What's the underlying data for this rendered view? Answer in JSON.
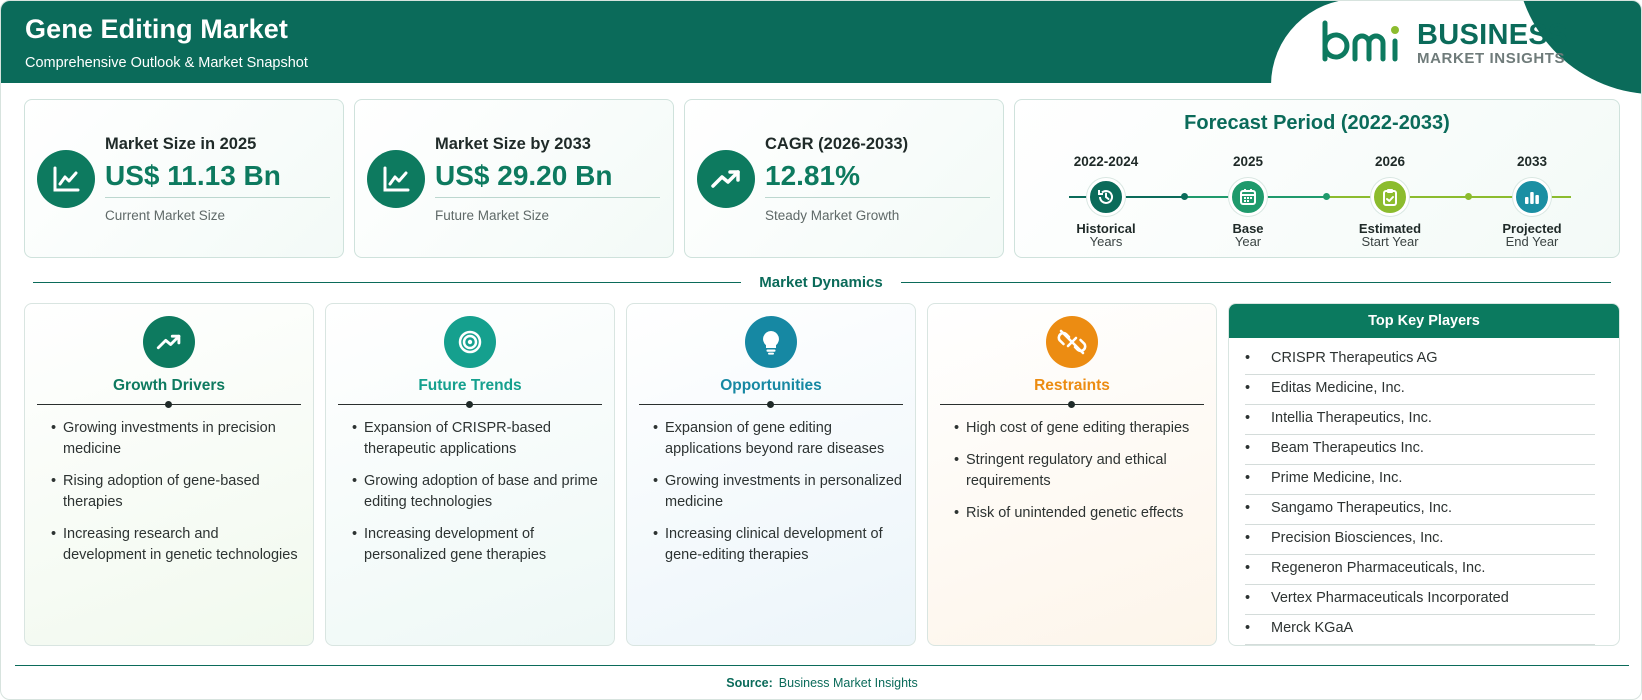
{
  "header": {
    "title": "Gene Editing Market",
    "subtitle": "Comprehensive Outlook & Market Snapshot"
  },
  "logo": {
    "mark_text": "bmi",
    "line1": "BUSINESS",
    "line2": "MARKET INSIGHTS"
  },
  "stats": [
    {
      "label": "Market Size in 2025",
      "value": "US$ 11.13 Bn",
      "sub": "Current Market Size",
      "icon": "line-chart-icon"
    },
    {
      "label": "Market Size by 2033",
      "value": "US$ 29.20 Bn",
      "sub": "Future Market Size",
      "icon": "line-chart-icon"
    },
    {
      "label": "CAGR (2026-2033)",
      "value": "12.81%",
      "sub": "Steady Market Growth",
      "icon": "trending-up-icon"
    }
  ],
  "forecast": {
    "title": "Forecast Period (2022-2033)",
    "stages": [
      {
        "year": "2022-2024",
        "caption1": "Historical",
        "caption2": "Years",
        "icon": "history-icon",
        "color": "#0b6b5a"
      },
      {
        "year": "2025",
        "caption1": "Base",
        "caption2": "Year",
        "icon": "calendar-icon",
        "color": "#1f9a6c"
      },
      {
        "year": "2026",
        "caption1": "Estimated",
        "caption2": "Start Year",
        "icon": "clipboard-check-icon",
        "color": "#8cbc2e"
      },
      {
        "year": "2033",
        "caption1": "Projected",
        "caption2": "End Year",
        "icon": "bar-chart-icon",
        "color": "#1b8fa3"
      }
    ]
  },
  "dynamics": {
    "title": "Market Dynamics",
    "columns": [
      {
        "title": "Growth Drivers",
        "color": "#0d7a5f",
        "icon": "trending-up-icon",
        "items": [
          "Growing investments in precision medicine",
          "Rising adoption of gene-based therapies",
          "Increasing research and development in genetic technologies"
        ]
      },
      {
        "title": "Future Trends",
        "color": "#15a08e",
        "icon": "target-icon",
        "items": [
          "Expansion of CRISPR-based therapeutic applications",
          "Growing adoption of base and prime editing technologies",
          "Increasing development of personalized gene therapies"
        ]
      },
      {
        "title": "Opportunities",
        "color": "#1688a3",
        "icon": "lightbulb-icon",
        "items": [
          "Expansion of gene editing applications beyond rare diseases",
          "Growing investments in personalized medicine",
          "Increasing clinical development of gene-editing therapies"
        ]
      },
      {
        "title": "Restraints",
        "color": "#ec8c12",
        "icon": "broken-link-icon",
        "items": [
          "High cost of gene editing therapies",
          "Stringent regulatory and ethical requirements",
          "Risk of unintended genetic effects"
        ]
      }
    ]
  },
  "key_players": {
    "title": "Top Key Players",
    "items": [
      "CRISPR Therapeutics AG",
      "Editas Medicine, Inc.",
      "Intellia Therapeutics, Inc.",
      "Beam Therapeutics Inc.",
      "Prime Medicine, Inc.",
      "Sangamo Therapeutics, Inc.",
      "Precision Biosciences, Inc.",
      "Regeneron Pharmaceuticals, Inc.",
      "Vertex Pharmaceuticals Incorporated",
      "Merck KGaA"
    ]
  },
  "footer": {
    "source_label": "Source:",
    "source_value": "Business Market Insights"
  }
}
